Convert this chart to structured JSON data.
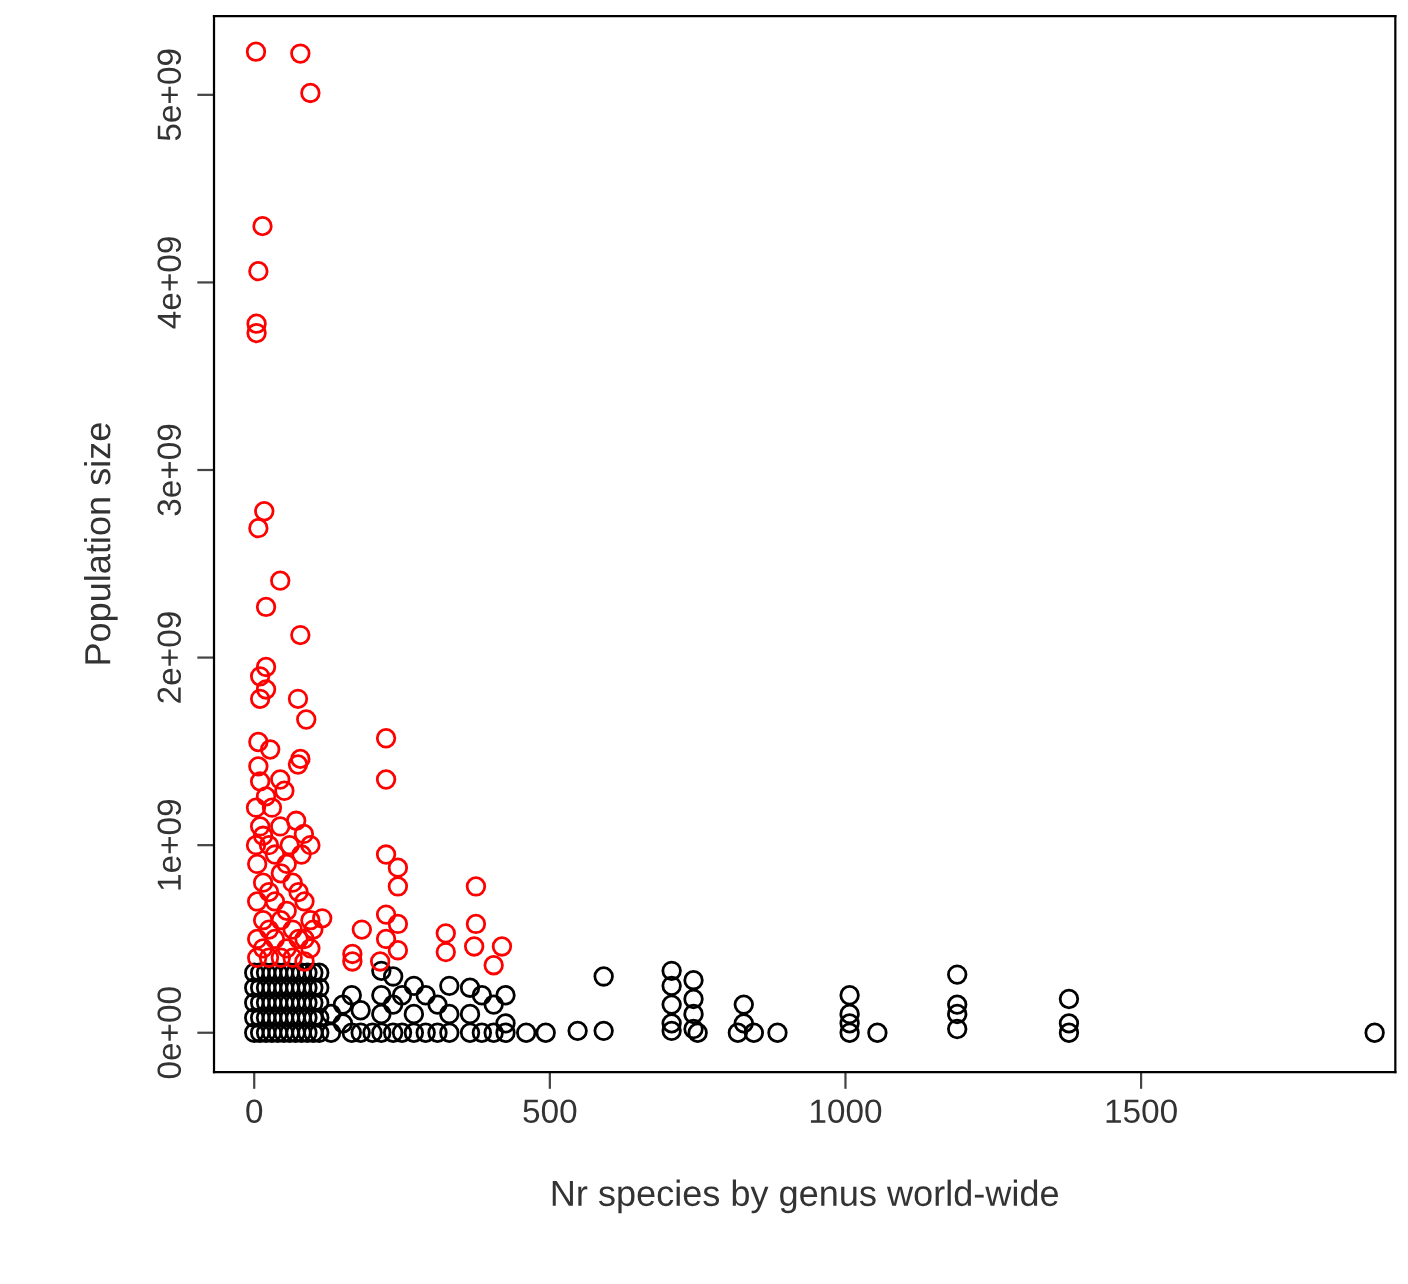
{
  "chart_data": {
    "type": "scatter",
    "xlabel": "Nr species by genus world-wide",
    "ylabel": "Population size",
    "xlim": [
      -68,
      1930
    ],
    "xticks": [
      0,
      500,
      1000,
      1500
    ],
    "ylim": [
      -210000000,
      5420000000
    ],
    "yticks": [
      {
        "value": 0,
        "label": "0e+00"
      },
      {
        "value": 1000000000,
        "label": "1e+09"
      },
      {
        "value": 2000000000,
        "label": "2e+09"
      },
      {
        "value": 3000000000,
        "label": "3e+09"
      },
      {
        "value": 4000000000,
        "label": "4e+09"
      },
      {
        "value": 5000000000,
        "label": "5e+09"
      }
    ],
    "grid": false,
    "marker": "circle",
    "series": [
      {
        "color": "#000000",
        "x": [
          0,
          0,
          0,
          0,
          0,
          10,
          10,
          10,
          10,
          10,
          20,
          20,
          20,
          20,
          20,
          30,
          30,
          30,
          30,
          30,
          40,
          40,
          40,
          40,
          40,
          50,
          50,
          50,
          50,
          50,
          60,
          60,
          60,
          60,
          60,
          70,
          70,
          70,
          70,
          70,
          80,
          80,
          80,
          80,
          80,
          90,
          90,
          90,
          90,
          90,
          100,
          100,
          100,
          100,
          100,
          110,
          110,
          110,
          110,
          110,
          130,
          130,
          150,
          150,
          165,
          165,
          180,
          180,
          200,
          215,
          215,
          215,
          215,
          235,
          235,
          235,
          250,
          250,
          270,
          270,
          270,
          290,
          290,
          310,
          310,
          330,
          330,
          330,
          365,
          365,
          365,
          385,
          385,
          405,
          405,
          425,
          425,
          425,
          460,
          493,
          547,
          591,
          591,
          706,
          706,
          706,
          706,
          706,
          743,
          743,
          743,
          743,
          750,
          828,
          828,
          818,
          845,
          885,
          1007,
          1007,
          1007,
          1007,
          1054,
          1189,
          1189,
          1189,
          1189,
          1378,
          1378,
          1378,
          1895
        ],
        "values": [
          0,
          80000000.0,
          160000000.0,
          240000000.0,
          320000000.0,
          0,
          80000000.0,
          160000000.0,
          240000000.0,
          320000000.0,
          0,
          80000000.0,
          160000000.0,
          240000000.0,
          320000000.0,
          0,
          80000000.0,
          160000000.0,
          240000000.0,
          320000000.0,
          0,
          80000000.0,
          160000000.0,
          240000000.0,
          320000000.0,
          0,
          80000000.0,
          160000000.0,
          240000000.0,
          320000000.0,
          0,
          80000000.0,
          160000000.0,
          240000000.0,
          320000000.0,
          0,
          80000000.0,
          160000000.0,
          240000000.0,
          320000000.0,
          0,
          80000000.0,
          160000000.0,
          240000000.0,
          320000000.0,
          0,
          80000000.0,
          160000000.0,
          240000000.0,
          320000000.0,
          0,
          80000000.0,
          160000000.0,
          240000000.0,
          320000000.0,
          0,
          80000000.0,
          160000000.0,
          240000000.0,
          320000000.0,
          100000000.0,
          0,
          150000000.0,
          50000000.0,
          200000000.0,
          0,
          120000000.0,
          0,
          0,
          330000000.0,
          200000000.0,
          100000000.0,
          0,
          300000000.0,
          150000000.0,
          0,
          200000000.0,
          0,
          250000000.0,
          100000000.0,
          0,
          200000000.0,
          0,
          150000000.0,
          0,
          250000000.0,
          100000000.0,
          0,
          240000000.0,
          100000000.0,
          0,
          200000000.0,
          0,
          150000000.0,
          0,
          200000000.0,
          50000000.0,
          0,
          0,
          0,
          10000000.0,
          300000000.0,
          10000000.0,
          330000000.0,
          250000000.0,
          150000000.0,
          50000000.0,
          10000000.0,
          280000000.0,
          180000000.0,
          100000000.0,
          20000000.0,
          0,
          150000000.0,
          50000000.0,
          0,
          0,
          0,
          200000000.0,
          100000000.0,
          50000000.0,
          0,
          0,
          310000000.0,
          150000000.0,
          100000000.0,
          20000000.0,
          180000000.0,
          50000000.0,
          0,
          0
        ]
      },
      {
        "color": "#ff0000",
        "x": [
          3,
          78,
          95,
          14,
          7,
          4,
          4,
          17,
          7,
          44,
          20,
          78,
          20,
          10,
          20,
          10,
          74,
          88,
          223,
          7,
          27,
          78,
          74,
          7,
          223,
          44,
          10,
          20,
          51,
          71,
          44,
          84,
          95,
          223,
          243,
          243,
          375,
          223,
          243,
          324,
          375,
          182,
          115,
          419,
          324,
          372,
          405,
          166,
          166,
          213,
          243,
          223,
          5,
          5,
          5,
          5,
          15,
          15,
          15,
          15,
          25,
          25,
          25,
          25,
          35,
          35,
          35,
          45,
          45,
          45,
          55,
          55,
          55,
          65,
          65,
          65,
          75,
          75,
          85,
          85,
          85,
          95,
          95,
          100,
          3,
          3,
          10,
          30,
          60,
          80
        ],
        "values": [
          5230000000.0,
          5220000000.0,
          5010000000.0,
          4300000000.0,
          4060000000.0,
          3780000000.0,
          3730000000.0,
          2780000000.0,
          2690000000.0,
          2410000000.0,
          2270000000.0,
          2120000000.0,
          1950000000.0,
          1900000000.0,
          1830000000.0,
          1780000000.0,
          1780000000.0,
          1670000000.0,
          1570000000.0,
          1550000000.0,
          1510000000.0,
          1460000000.0,
          1430000000.0,
          1420000000.0,
          1350000000.0,
          1350000000.0,
          1340000000.0,
          1260000000.0,
          1290000000.0,
          1130000000.0,
          1100000000.0,
          1060000000.0,
          1000000000.0,
          950000000.0,
          880000000.0,
          780000000.0,
          780000000.0,
          630000000.0,
          580000000.0,
          530000000.0,
          580000000.0,
          550000000.0,
          610000000.0,
          460000000.0,
          430000000.0,
          460000000.0,
          360000000.0,
          420000000.0,
          380000000.0,
          380000000.0,
          440000000.0,
          500000000.0,
          900000000.0,
          700000000.0,
          500000000.0,
          400000000.0,
          1050000000.0,
          800000000.0,
          600000000.0,
          450000000.0,
          1000000000.0,
          750000000.0,
          550000000.0,
          400000000.0,
          950000000.0,
          700000000.0,
          500000000.0,
          850000000.0,
          600000000.0,
          400000000.0,
          900000000.0,
          650000000.0,
          450000000.0,
          800000000.0,
          550000000.0,
          400000000.0,
          750000000.0,
          500000000.0,
          700000000.0,
          500000000.0,
          380000000.0,
          600000000.0,
          450000000.0,
          550000000.0,
          1200000000.0,
          1000000000.0,
          1100000000.0,
          1200000000.0,
          1000000000.0,
          950000000.0
        ]
      }
    ]
  }
}
